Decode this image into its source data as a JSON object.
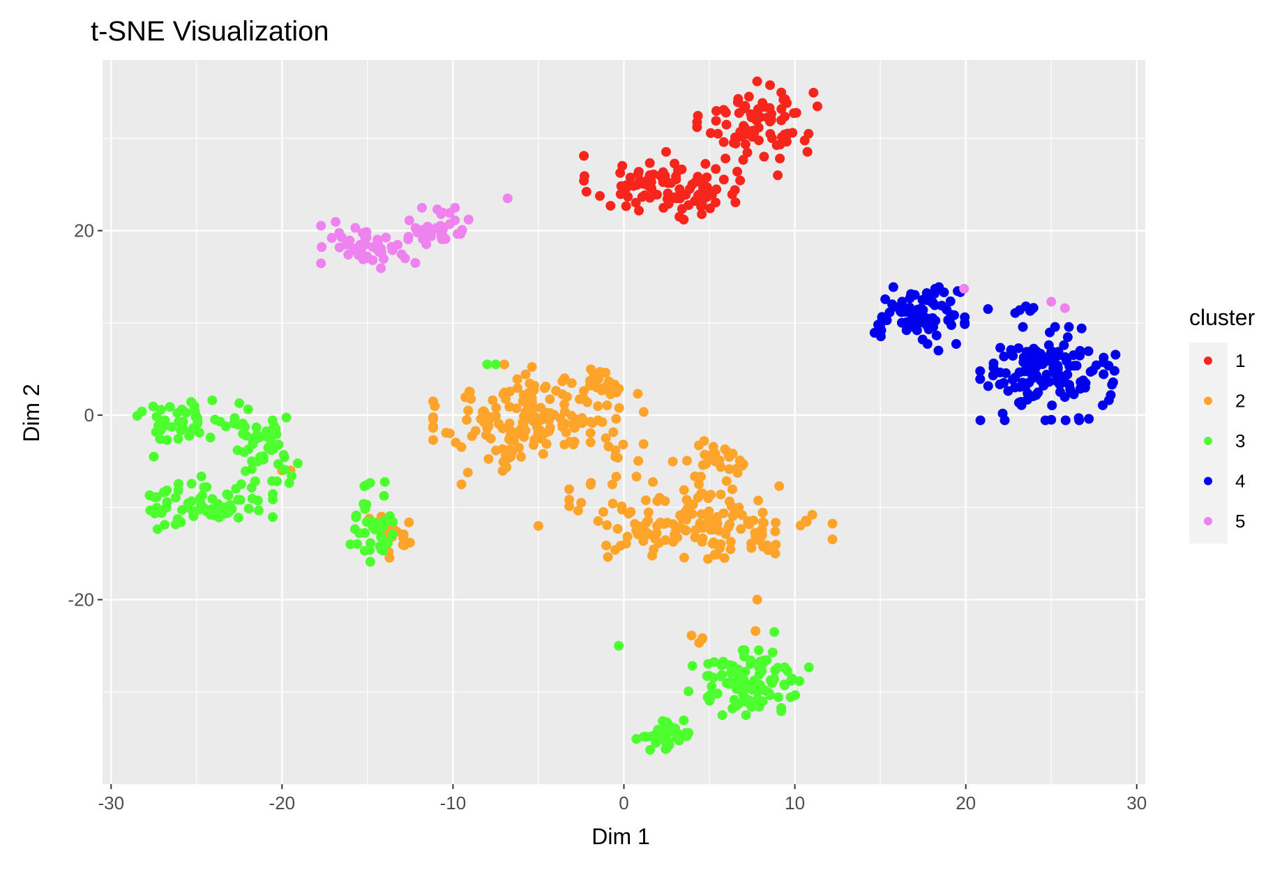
{
  "chart_data": {
    "type": "scatter",
    "title": "t-SNE Visualization",
    "xlabel": "Dim 1",
    "ylabel": "Dim 2",
    "xlim": [
      -30.5,
      30.5
    ],
    "ylim": [
      -40,
      38.5
    ],
    "x_ticks": [
      -30,
      -20,
      -10,
      0,
      10,
      20,
      30
    ],
    "y_ticks": [
      -20,
      0,
      20
    ],
    "x_tick_labels": [
      "-30",
      "-20",
      "-10",
      "0",
      "10",
      "20",
      "30"
    ],
    "y_tick_labels": [
      "-20",
      "0",
      "20"
    ],
    "grid": true,
    "panel_background": "#ebebeb",
    "grid_color": "#ffffff",
    "legend": {
      "title": "cluster",
      "position": "right",
      "entries": [
        {
          "label": "1",
          "color": "#f8251c"
        },
        {
          "label": "2",
          "color": "#ffa42b"
        },
        {
          "label": "3",
          "color": "#4dff2e"
        },
        {
          "label": "4",
          "color": "#0000ee"
        },
        {
          "label": "5",
          "color": "#ee82ee"
        }
      ]
    },
    "series": [
      {
        "name": "1",
        "color": "#f8251c",
        "clusters": [
          {
            "cx": 2.5,
            "cy": 24.8,
            "sx": 2.2,
            "sy": 1.7,
            "n": 95
          },
          {
            "cx": 7.8,
            "cy": 32.0,
            "sx": 1.6,
            "sy": 1.9,
            "n": 80
          }
        ],
        "points": [
          [
            10.8,
            30.5
          ],
          [
            9.0,
            26.0
          ],
          [
            5.5,
            30.5
          ],
          [
            0.1,
            24.5
          ],
          [
            3.5,
            21.2
          ]
        ]
      },
      {
        "name": "2",
        "color": "#ffa42b",
        "clusters": [
          {
            "cx": -5.0,
            "cy": -0.5,
            "sx": 2.8,
            "sy": 2.6,
            "n": 170
          },
          {
            "cx": -1.5,
            "cy": 3.0,
            "sx": 0.9,
            "sy": 0.9,
            "n": 22
          },
          {
            "cx": 4.5,
            "cy": -11.5,
            "sx": 3.5,
            "sy": 2.2,
            "n": 150
          },
          {
            "cx": 5.5,
            "cy": -5.0,
            "sx": 1.2,
            "sy": 1.0,
            "n": 28
          },
          {
            "cx": -13.5,
            "cy": -13.0,
            "sx": 0.9,
            "sy": 1.2,
            "n": 20
          },
          {
            "cx": 4.5,
            "cy": -23.8,
            "sx": 0.5,
            "sy": 0.4,
            "n": 4
          }
        ],
        "points": [
          [
            -9.5,
            -7.5
          ],
          [
            -5.0,
            -12.0
          ],
          [
            -7.0,
            5.5
          ],
          [
            7.8,
            -20.0
          ],
          [
            7.7,
            -23.4
          ],
          [
            -20.0,
            -6.0
          ],
          [
            -19.5,
            -6.0
          ],
          [
            -0.5,
            -4.5
          ],
          [
            -0.5,
            -3.8
          ],
          [
            -2.5,
            -9.5
          ]
        ]
      },
      {
        "name": "3",
        "color": "#4dff2e",
        "clusters": [
          {
            "cx": -25.5,
            "cy": -0.5,
            "sx": 1.6,
            "sy": 1.1,
            "n": 45
          },
          {
            "cx": -21.0,
            "cy": -4.0,
            "sx": 0.9,
            "sy": 1.7,
            "n": 45
          },
          {
            "cx": -24.5,
            "cy": -9.5,
            "sx": 1.8,
            "sy": 1.3,
            "n": 70
          },
          {
            "cx": -14.5,
            "cy": -11.5,
            "sx": 0.6,
            "sy": 2.4,
            "n": 38
          },
          {
            "cx": 7.3,
            "cy": -29.0,
            "sx": 1.6,
            "sy": 1.6,
            "n": 110
          },
          {
            "cx": 2.5,
            "cy": -34.5,
            "sx": 0.9,
            "sy": 0.9,
            "n": 35
          }
        ],
        "points": [
          [
            -28.2,
            0.4
          ],
          [
            -27.5,
            -4.5
          ],
          [
            -22.5,
            1.3
          ],
          [
            -8.0,
            5.5
          ],
          [
            -7.5,
            5.5
          ],
          [
            -0.3,
            -25.0
          ],
          [
            8.8,
            -23.5
          ],
          [
            -16.0,
            -14.0
          ]
        ]
      },
      {
        "name": "4",
        "color": "#0000ee",
        "clusters": [
          {
            "cx": 17.3,
            "cy": 10.8,
            "sx": 1.2,
            "sy": 1.4,
            "n": 85
          },
          {
            "cx": 24.8,
            "cy": 4.5,
            "sx": 1.8,
            "sy": 2.3,
            "n": 135
          },
          {
            "cx": 23.3,
            "cy": 11.5,
            "sx": 0.5,
            "sy": 0.3,
            "n": 6
          }
        ],
        "points": [
          [
            28.7,
            4.8
          ],
          [
            21.3,
            11.5
          ],
          [
            15.0,
            9.8
          ],
          [
            27.2,
            -0.4
          ],
          [
            25.0,
            -0.5
          ],
          [
            18.4,
            7.0
          ]
        ]
      },
      {
        "name": "5",
        "color": "#ee82ee",
        "clusters": [
          {
            "cx": -15.3,
            "cy": 18.5,
            "sx": 1.1,
            "sy": 1.2,
            "n": 45
          },
          {
            "cx": -10.8,
            "cy": 20.5,
            "sx": 0.9,
            "sy": 0.9,
            "n": 35
          }
        ],
        "points": [
          [
            -6.8,
            23.5
          ],
          [
            19.9,
            13.7
          ],
          [
            25.0,
            12.3
          ],
          [
            25.8,
            11.6
          ],
          [
            -12.8,
            17.0
          ],
          [
            -12.2,
            16.5
          ]
        ]
      }
    ]
  }
}
